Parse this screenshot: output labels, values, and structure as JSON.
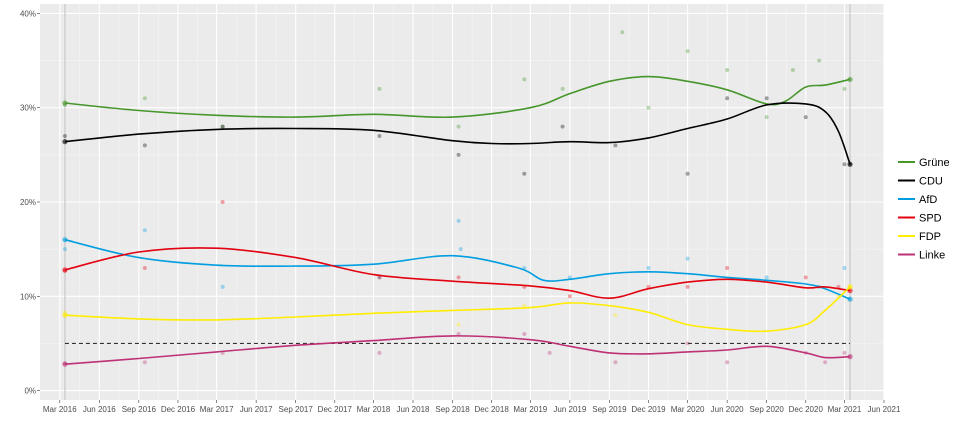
{
  "chart_data": {
    "type": "line",
    "title": "",
    "xlabel": "",
    "ylabel": "",
    "x_ticks": [
      "Mar 2016",
      "Jun 2016",
      "Sep 2016",
      "Dec 2016",
      "Mar 2017",
      "Jun 2017",
      "Sep 2017",
      "Dec 2017",
      "Mar 2018",
      "Jun 2018",
      "Sep 2018",
      "Dec 2018",
      "Mar 2019",
      "Jun 2019",
      "Sep 2019",
      "Dec 2019",
      "Mar 2020",
      "Jun 2020",
      "Sep 2020",
      "Dec 2020",
      "Mar 2021",
      "Jun 2021"
    ],
    "y_ticks": [
      {
        "value": 0,
        "label": "0%"
      },
      {
        "value": 10,
        "label": "10%"
      },
      {
        "value": 20,
        "label": "20%"
      },
      {
        "value": 30,
        "label": "30%"
      },
      {
        "value": 40,
        "label": "40%"
      }
    ],
    "xlim": [
      "2016-01-15",
      "2021-06-01"
    ],
    "ylim": [
      -1,
      41
    ],
    "grid": true,
    "legend_position": "right",
    "threshold": {
      "value": 5,
      "style": "dashed",
      "color": "#333333",
      "from": "2016-03-13",
      "to": "2021-03-14"
    },
    "election_markers": [
      "2016-03-13",
      "2021-03-14"
    ],
    "series": [
      {
        "name": "Grüne",
        "color": "#46962b",
        "points": [
          [
            "2016-03-13",
            30.5
          ],
          [
            "2016-09-01",
            29.7
          ],
          [
            "2017-03-01",
            29.2
          ],
          [
            "2017-09-01",
            29.0
          ],
          [
            "2018-03-01",
            29.3
          ],
          [
            "2018-09-01",
            29.0
          ],
          [
            "2019-03-01",
            30.0
          ],
          [
            "2019-06-01",
            31.5
          ],
          [
            "2019-09-01",
            32.8
          ],
          [
            "2019-12-01",
            33.3
          ],
          [
            "2020-03-01",
            32.8
          ],
          [
            "2020-06-01",
            31.9
          ],
          [
            "2020-09-01",
            30.4
          ],
          [
            "2020-10-15",
            30.7
          ],
          [
            "2020-12-01",
            32.2
          ],
          [
            "2021-01-15",
            32.4
          ],
          [
            "2021-03-14",
            33.0
          ]
        ],
        "polls": [
          [
            "2016-03-13",
            30.3
          ],
          [
            "2016-09-15",
            31
          ],
          [
            "2017-03-15",
            28
          ],
          [
            "2018-03-15",
            32
          ],
          [
            "2018-09-15",
            28
          ],
          [
            "2019-02-15",
            33
          ],
          [
            "2019-05-15",
            32
          ],
          [
            "2019-10-01",
            38
          ],
          [
            "2019-12-01",
            30
          ],
          [
            "2020-03-01",
            36
          ],
          [
            "2020-06-01",
            34
          ],
          [
            "2020-09-01",
            29
          ],
          [
            "2020-11-01",
            34
          ],
          [
            "2021-01-01",
            35
          ],
          [
            "2021-03-01",
            32
          ]
        ]
      },
      {
        "name": "CDU",
        "color": "#000000",
        "points": [
          [
            "2016-03-13",
            26.4
          ],
          [
            "2016-09-01",
            27.2
          ],
          [
            "2017-03-01",
            27.7
          ],
          [
            "2017-09-01",
            27.8
          ],
          [
            "2018-03-01",
            27.6
          ],
          [
            "2018-09-01",
            26.5
          ],
          [
            "2018-12-01",
            26.2
          ],
          [
            "2019-03-01",
            26.2
          ],
          [
            "2019-06-01",
            26.4
          ],
          [
            "2019-09-01",
            26.3
          ],
          [
            "2019-12-01",
            26.8
          ],
          [
            "2020-03-01",
            27.8
          ],
          [
            "2020-06-01",
            28.8
          ],
          [
            "2020-09-01",
            30.3
          ],
          [
            "2020-12-01",
            30.4
          ],
          [
            "2021-01-15",
            29.6
          ],
          [
            "2021-02-15",
            27.5
          ],
          [
            "2021-03-14",
            24.0
          ]
        ],
        "polls": [
          [
            "2016-03-13",
            27
          ],
          [
            "2016-09-15",
            26
          ],
          [
            "2017-03-15",
            28
          ],
          [
            "2018-03-15",
            27
          ],
          [
            "2018-09-15",
            25
          ],
          [
            "2019-02-15",
            23
          ],
          [
            "2019-05-15",
            28
          ],
          [
            "2019-09-15",
            26
          ],
          [
            "2020-03-01",
            23
          ],
          [
            "2020-06-01",
            31
          ],
          [
            "2020-09-01",
            31
          ],
          [
            "2020-12-01",
            29
          ],
          [
            "2021-03-01",
            24
          ],
          [
            "2021-03-14",
            24
          ]
        ]
      },
      {
        "name": "AfD",
        "color": "#009ee0",
        "points": [
          [
            "2016-03-13",
            16.0
          ],
          [
            "2016-09-01",
            14.1
          ],
          [
            "2017-03-01",
            13.3
          ],
          [
            "2017-09-01",
            13.2
          ],
          [
            "2018-03-01",
            13.4
          ],
          [
            "2018-09-01",
            14.3
          ],
          [
            "2019-02-01",
            13.0
          ],
          [
            "2019-04-01",
            11.7
          ],
          [
            "2019-06-01",
            11.8
          ],
          [
            "2019-09-01",
            12.4
          ],
          [
            "2019-12-01",
            12.6
          ],
          [
            "2020-03-01",
            12.4
          ],
          [
            "2020-06-01",
            12.0
          ],
          [
            "2020-09-01",
            11.7
          ],
          [
            "2020-12-01",
            11.3
          ],
          [
            "2021-01-15",
            10.8
          ],
          [
            "2021-03-14",
            9.7
          ]
        ],
        "polls": [
          [
            "2016-03-13",
            15
          ],
          [
            "2016-09-15",
            17
          ],
          [
            "2017-03-15",
            11
          ],
          [
            "2018-03-15",
            12
          ],
          [
            "2018-09-15",
            18
          ],
          [
            "2018-09-20",
            15
          ],
          [
            "2019-02-15",
            13
          ],
          [
            "2019-06-01",
            12
          ],
          [
            "2019-12-01",
            13
          ],
          [
            "2020-03-01",
            14
          ],
          [
            "2020-09-01",
            12
          ],
          [
            "2021-01-01",
            11
          ],
          [
            "2021-03-01",
            13
          ]
        ]
      },
      {
        "name": "SPD",
        "color": "#e3000f",
        "points": [
          [
            "2016-03-13",
            12.8
          ],
          [
            "2016-09-01",
            14.7
          ],
          [
            "2017-03-01",
            15.1
          ],
          [
            "2017-09-01",
            14.1
          ],
          [
            "2018-03-01",
            12.3
          ],
          [
            "2018-09-01",
            11.6
          ],
          [
            "2019-03-01",
            11.1
          ],
          [
            "2019-06-01",
            10.6
          ],
          [
            "2019-09-01",
            9.8
          ],
          [
            "2019-12-01",
            10.8
          ],
          [
            "2020-03-01",
            11.5
          ],
          [
            "2020-06-01",
            11.8
          ],
          [
            "2020-09-01",
            11.5
          ],
          [
            "2020-12-01",
            10.9
          ],
          [
            "2021-01-15",
            11.0
          ],
          [
            "2021-03-14",
            10.6
          ]
        ],
        "polls": [
          [
            "2016-03-13",
            12.7
          ],
          [
            "2016-09-15",
            13
          ],
          [
            "2017-03-15",
            20
          ],
          [
            "2018-03-15",
            12
          ],
          [
            "2018-09-15",
            12
          ],
          [
            "2019-02-15",
            11
          ],
          [
            "2019-06-01",
            10
          ],
          [
            "2019-12-01",
            11
          ],
          [
            "2020-03-01",
            11
          ],
          [
            "2020-06-01",
            13
          ],
          [
            "2020-12-01",
            12
          ],
          [
            "2021-02-15",
            11
          ]
        ]
      },
      {
        "name": "FDP",
        "color": "#ffed00",
        "points": [
          [
            "2016-03-13",
            8.0
          ],
          [
            "2016-09-01",
            7.6
          ],
          [
            "2017-03-01",
            7.5
          ],
          [
            "2017-09-01",
            7.8
          ],
          [
            "2018-03-01",
            8.2
          ],
          [
            "2018-09-01",
            8.5
          ],
          [
            "2019-03-01",
            8.8
          ],
          [
            "2019-06-01",
            9.3
          ],
          [
            "2019-09-01",
            9.0
          ],
          [
            "2019-12-01",
            8.3
          ],
          [
            "2020-03-01",
            7.0
          ],
          [
            "2020-06-01",
            6.5
          ],
          [
            "2020-09-01",
            6.3
          ],
          [
            "2020-12-01",
            7.0
          ],
          [
            "2021-01-15",
            8.5
          ],
          [
            "2021-03-14",
            11.0
          ]
        ],
        "polls": [
          [
            "2016-03-13",
            8.3
          ],
          [
            "2018-09-15",
            7
          ],
          [
            "2019-02-15",
            9
          ],
          [
            "2019-09-15",
            8
          ],
          [
            "2021-02-15",
            10
          ],
          [
            "2021-03-14",
            11
          ]
        ]
      },
      {
        "name": "Linke",
        "color": "#be3075",
        "points": [
          [
            "2016-03-13",
            2.8
          ],
          [
            "2016-09-01",
            3.4
          ],
          [
            "2017-03-01",
            4.1
          ],
          [
            "2017-09-01",
            4.8
          ],
          [
            "2018-03-01",
            5.3
          ],
          [
            "2018-09-01",
            5.8
          ],
          [
            "2019-03-01",
            5.4
          ],
          [
            "2019-06-01",
            4.7
          ],
          [
            "2019-09-01",
            4.0
          ],
          [
            "2019-12-01",
            3.9
          ],
          [
            "2020-03-01",
            4.1
          ],
          [
            "2020-06-01",
            4.3
          ],
          [
            "2020-09-01",
            4.7
          ],
          [
            "2020-12-01",
            4.0
          ],
          [
            "2021-01-15",
            3.5
          ],
          [
            "2021-03-14",
            3.6
          ]
        ],
        "polls": [
          [
            "2016-03-13",
            2.9
          ],
          [
            "2016-09-15",
            3
          ],
          [
            "2017-03-15",
            4
          ],
          [
            "2018-03-15",
            4
          ],
          [
            "2018-09-15",
            6
          ],
          [
            "2019-02-15",
            6
          ],
          [
            "2019-04-15",
            4
          ],
          [
            "2019-09-15",
            3
          ],
          [
            "2020-03-01",
            5
          ],
          [
            "2020-06-01",
            3
          ],
          [
            "2020-12-01",
            4
          ],
          [
            "2021-01-15",
            3
          ],
          [
            "2021-03-01",
            4
          ]
        ]
      }
    ]
  }
}
